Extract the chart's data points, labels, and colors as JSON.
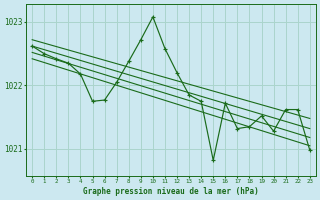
{
  "title": "Graphe pression niveau de la mer (hPa)",
  "bg_color": "#cce8f0",
  "grid_color": "#aad4cc",
  "line_color": "#1a6b1a",
  "xlim": [
    -0.5,
    23.5
  ],
  "ylim": [
    1020.58,
    1023.28
  ],
  "yticks": [
    1021,
    1022,
    1023
  ],
  "xticks": [
    0,
    1,
    2,
    3,
    4,
    5,
    6,
    7,
    8,
    9,
    10,
    11,
    12,
    13,
    14,
    15,
    16,
    17,
    18,
    19,
    20,
    21,
    22,
    23
  ],
  "trend_lines": [
    [
      [
        0,
        1022.72
      ],
      [
        23,
        1021.48
      ]
    ],
    [
      [
        0,
        1022.62
      ],
      [
        23,
        1021.32
      ]
    ],
    [
      [
        0,
        1022.52
      ],
      [
        23,
        1021.18
      ]
    ],
    [
      [
        0,
        1022.42
      ],
      [
        23,
        1021.05
      ]
    ]
  ],
  "main_x": [
    0,
    1,
    2,
    3,
    4,
    5,
    6,
    7,
    8,
    9,
    10,
    11,
    12,
    13,
    14,
    15,
    16,
    17,
    18,
    19,
    20,
    21,
    22,
    23
  ],
  "main_y": [
    1022.62,
    1022.5,
    1022.42,
    1022.35,
    1022.18,
    1021.75,
    1021.77,
    1022.05,
    1022.38,
    1022.72,
    1023.08,
    1022.58,
    1022.2,
    1021.85,
    1021.75,
    1020.82,
    1021.72,
    1021.32,
    1021.35,
    1021.52,
    1021.28,
    1021.62,
    1021.62,
    1020.98
  ]
}
